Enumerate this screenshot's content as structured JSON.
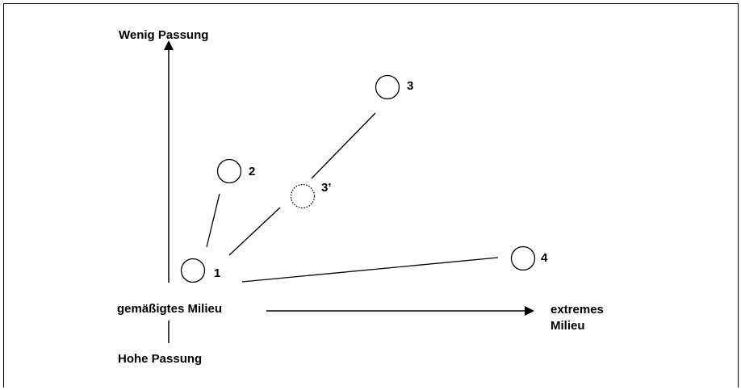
{
  "axes": {
    "y_top_label": "Wenig Passung",
    "y_bottom_label": "Hohe Passung",
    "x_left_label": "gemäßigtes Milieu",
    "x_right_label_line1": "extremes",
    "x_right_label_line2": "Milieu"
  },
  "nodes": [
    {
      "id": "1",
      "label": "1",
      "style": "solid"
    },
    {
      "id": "2",
      "label": "2",
      "style": "solid"
    },
    {
      "id": "3",
      "label": "3",
      "style": "solid"
    },
    {
      "id": "3p",
      "label": "3’",
      "style": "dotted"
    },
    {
      "id": "4",
      "label": "4",
      "style": "solid"
    }
  ],
  "edges": [
    {
      "from": "1",
      "to": "2"
    },
    {
      "from": "1",
      "to": "3p"
    },
    {
      "from": "3p",
      "to": "3"
    },
    {
      "from": "1",
      "to": "4"
    }
  ]
}
